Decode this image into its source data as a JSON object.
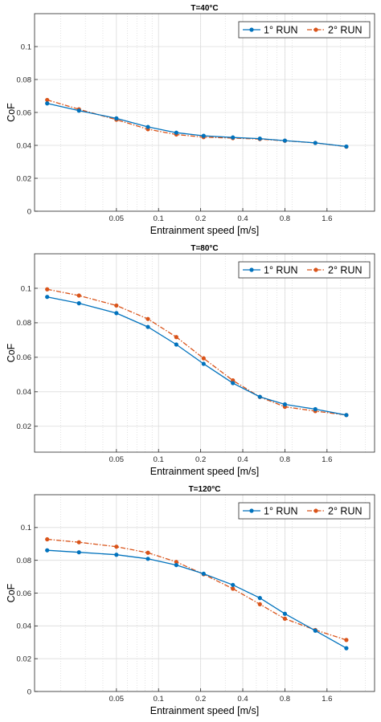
{
  "chart_data": [
    {
      "type": "line",
      "title": "T=40°C",
      "xlabel": "Entrainment speed [m/s]",
      "ylabel": "CoF",
      "xscale": "log",
      "grid": true,
      "legend_position": "top-right",
      "xtick_labels": [
        "0.05",
        "0.1",
        "0.2",
        "0.4",
        "0.8",
        "1.6"
      ],
      "yticks": [
        0,
        0.02,
        0.04,
        0.06,
        0.08,
        0.1
      ],
      "ytick_labels": [
        "0",
        "0.02",
        "0.04",
        "0.06",
        "0.08",
        "0.1"
      ],
      "ylim": [
        0,
        0.12
      ],
      "x": [
        0.016,
        0.027,
        0.05,
        0.084,
        0.134,
        0.21,
        0.34,
        0.53,
        0.8,
        1.32,
        2.2
      ],
      "series": [
        {
          "name": "1° RUN",
          "color": "#0072BD",
          "style": "solid",
          "values": [
            0.0655,
            0.0611,
            0.0564,
            0.0512,
            0.0477,
            0.0458,
            0.0448,
            0.0441,
            0.0429,
            0.0415,
            0.0393
          ]
        },
        {
          "name": "2° RUN",
          "color": "#D95319",
          "style": "dashdot",
          "values": [
            0.0676,
            0.0619,
            0.0556,
            0.0498,
            0.0466,
            0.045,
            0.0444,
            0.0438,
            0.0428,
            0.0415,
            0.0392
          ]
        }
      ]
    },
    {
      "type": "line",
      "title": "T=80°C",
      "xlabel": "Entrainment speed [m/s]",
      "ylabel": "CoF",
      "xscale": "log",
      "grid": true,
      "legend_position": "top-right",
      "xtick_labels": [
        "0.05",
        "0.1",
        "0.2",
        "0.4",
        "0.8",
        "1.6"
      ],
      "yticks": [
        0.02,
        0.04,
        0.06,
        0.08,
        0.1
      ],
      "ytick_labels": [
        "0.02",
        "0.04",
        "0.06",
        "0.08",
        "0.1"
      ],
      "ylim": [
        0.005,
        0.12
      ],
      "x": [
        0.016,
        0.027,
        0.05,
        0.084,
        0.134,
        0.21,
        0.34,
        0.53,
        0.8,
        1.32,
        2.2
      ],
      "series": [
        {
          "name": "1° RUN",
          "color": "#0072BD",
          "style": "solid",
          "values": [
            0.095,
            0.0913,
            0.0856,
            0.0776,
            0.0674,
            0.0562,
            0.045,
            0.0371,
            0.0327,
            0.0299,
            0.0265
          ]
        },
        {
          "name": "2° RUN",
          "color": "#D95319",
          "style": "dashdot",
          "values": [
            0.0994,
            0.0958,
            0.09,
            0.0822,
            0.0717,
            0.0594,
            0.0466,
            0.037,
            0.0313,
            0.0288,
            0.0265
          ]
        }
      ]
    },
    {
      "type": "line",
      "title": "T=120°C",
      "xlabel": "Entrainment speed [m/s]",
      "ylabel": "CoF",
      "xscale": "log",
      "grid": true,
      "legend_position": "top-right",
      "xtick_labels": [
        "0.05",
        "0.1",
        "0.2",
        "0.4",
        "0.8",
        "1.6"
      ],
      "yticks": [
        0,
        0.02,
        0.04,
        0.06,
        0.08,
        0.1
      ],
      "ytick_labels": [
        "0",
        "0.02",
        "0.04",
        "0.06",
        "0.08",
        "0.1"
      ],
      "ylim": [
        0,
        0.12
      ],
      "x": [
        0.016,
        0.027,
        0.05,
        0.084,
        0.134,
        0.21,
        0.34,
        0.53,
        0.8,
        1.32,
        2.2
      ],
      "series": [
        {
          "name": "1° RUN",
          "color": "#0072BD",
          "style": "solid",
          "values": [
            0.0861,
            0.0849,
            0.0834,
            0.0809,
            0.0771,
            0.0718,
            0.065,
            0.057,
            0.0474,
            0.0371,
            0.0264
          ]
        },
        {
          "name": "2° RUN",
          "color": "#D95319",
          "style": "dashdot",
          "values": [
            0.0928,
            0.091,
            0.0883,
            0.0846,
            0.079,
            0.0715,
            0.0627,
            0.0532,
            0.0444,
            0.0375,
            0.0314
          ]
        }
      ]
    }
  ]
}
